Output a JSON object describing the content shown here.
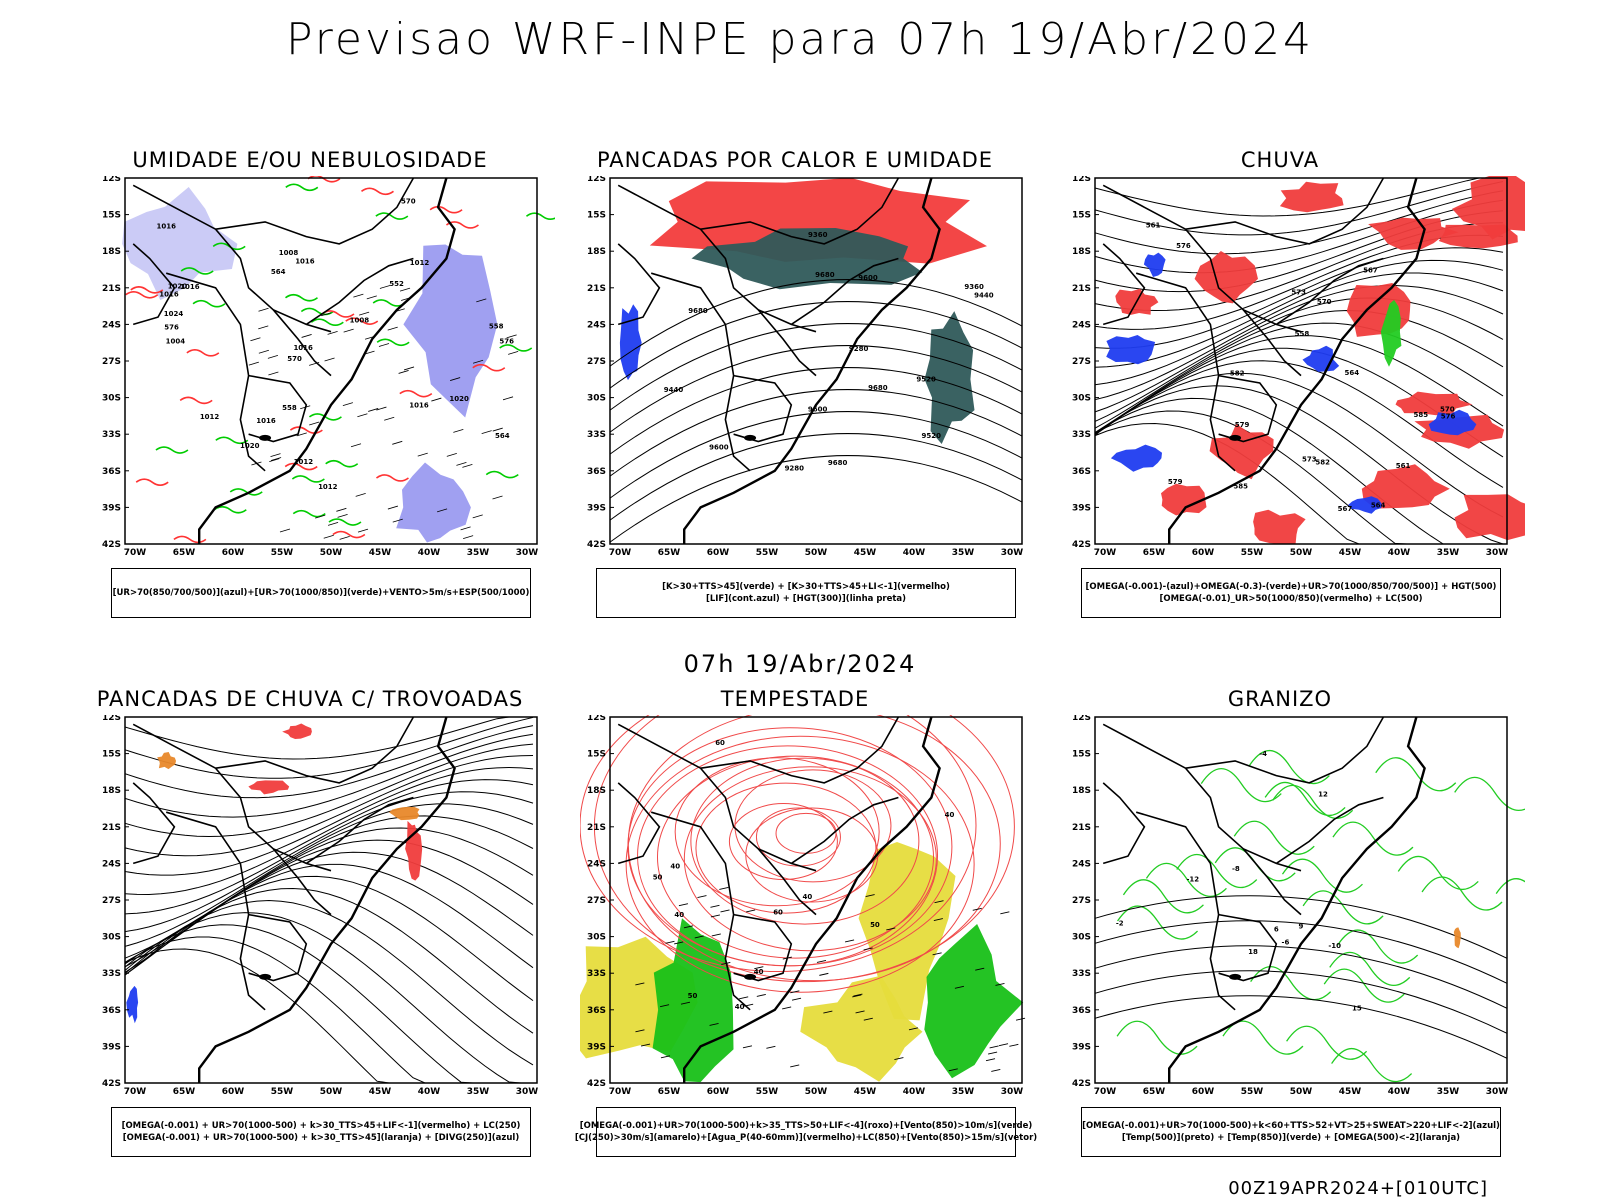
{
  "header": {
    "title": "Previsao WRF-INPE  para 07h 19/Abr/2024"
  },
  "middle": {
    "date_label": "07h 19/Abr/2024"
  },
  "footer": {
    "run_stamp": "00Z19APR2024+[010UTC]"
  },
  "axes": {
    "lat_ticks": [
      "12S",
      "15S",
      "18S",
      "21S",
      "24S",
      "27S",
      "30S",
      "33S",
      "36S",
      "39S",
      "42S"
    ],
    "lon_ticks": [
      "70W",
      "65W",
      "60W",
      "55W",
      "50W",
      "45W",
      "40W",
      "35W",
      "30W"
    ]
  },
  "panels": [
    {
      "title": "UMIDADE E/OU NEBULOSIDADE",
      "legend": [
        "[UR>70(850/700/500)](azul)+[UR>70(1000/850)](verde)+VENTO>5m/s+ESP(500/1000)"
      ],
      "contour_labels": [
        "1012",
        "1016",
        "1016",
        "1016",
        "1020",
        "1024",
        "1020",
        "1016",
        "1020",
        "1016",
        "1016",
        "1012",
        "1008",
        "1012",
        "1004",
        "1008",
        "1016",
        "1012",
        "576",
        "570",
        "564",
        "558",
        "552",
        "576",
        "570",
        "564",
        "558"
      ],
      "colors": {
        "fill_a": "#9b9bf0",
        "fill_b": "#c8c8f5",
        "line_green": "#00cc00",
        "line_red": "#ff3333"
      }
    },
    {
      "title": "PANCADAS POR CALOR E UMIDADE",
      "legend": [
        "[K>30+TTS>45](verde) + [K>30+TTS>45+LI<-1](vermelho)",
        "[LIF](cont.azul) + [HGT(300)](linha preta)"
      ],
      "contour_labels": [
        "9680",
        "9680",
        "9680",
        "9600",
        "9680",
        "9600",
        "9520",
        "9440",
        "9360",
        "9280",
        "9600",
        "9520",
        "9440",
        "9360",
        "9280"
      ],
      "colors": {
        "fill_red": "#f23c3c",
        "fill_teal": "#2f5a5a",
        "line_blue": "#1f3cf0"
      }
    },
    {
      "title": "CHUVA",
      "legend": [
        "[OMEGA(-0.001)-(azul)+OMEGA(-0.3)-(verde)+UR>70(1000/850/700/500)] + HGT(500)",
        "[OMEGA(-0.01)_UR>50(1000/850)(vermelho) + LC(500)"
      ],
      "contour_labels": [
        "585",
        "582",
        "579",
        "576",
        "573",
        "570",
        "567",
        "564",
        "561",
        "558",
        "585",
        "582",
        "579",
        "576",
        "573",
        "570",
        "567",
        "564",
        "561"
      ],
      "colors": {
        "fill_red": "#f03c3c",
        "fill_blue": "#1f3cf0",
        "fill_green": "#22cc22"
      }
    },
    {
      "title": "PANCADAS DE CHUVA C/ TROVOADAS",
      "legend": [
        "[OMEGA(-0.001) + UR>70(1000-500) + k>30_TTS>45+LIF<-1](vermelho) + LC(250)",
        "[OMEGA(-0.001) + UR>70(1000-500) + k>30_TTS>45](laranja) + [DIVG(250)](azul)"
      ],
      "contour_labels": [],
      "colors": {
        "fill_red": "#f03c3c",
        "fill_orange": "#e8882a",
        "fill_blue": "#1f3cf0"
      }
    },
    {
      "title": "TEMPESTADE",
      "legend": [
        "[OMEGA(-0.001)+UR>70(1000-500)+k>35_TTS>50+LIF<-4](roxo)+[Vento(850)>10m/s](verde)",
        "[CJ(250)>30m/s](amarelo)+[Agua_P(40-60mm)](vermelho)+LC(850)+[Vento(850)>15m/s](vetor)"
      ],
      "contour_labels": [
        "40",
        "40",
        "50",
        "40",
        "50",
        "60",
        "40",
        "50",
        "40",
        "60",
        "40"
      ],
      "colors": {
        "fill_yellow": "#e6dc3c",
        "fill_green": "#18c018",
        "line_red": "#f04a4a"
      }
    },
    {
      "title": "GRANIZO",
      "legend": [
        "[OMEGA(-0.001)+UR>70(1000-500)+k<60+TTS>52+VT>25+SWEAT>220+LIF<-2](azul)",
        "[Temp(500)](preto) + [Temp(850)](verde) + [OMEGA(500)<-2](laranja)"
      ],
      "contour_labels": [
        "-10",
        "-12",
        "-8",
        "-6",
        "-4",
        "-2",
        "15",
        "18",
        "12",
        "9",
        "6"
      ],
      "colors": {
        "line_green": "#22cc22",
        "fill_orange": "#e8882a"
      }
    }
  ]
}
